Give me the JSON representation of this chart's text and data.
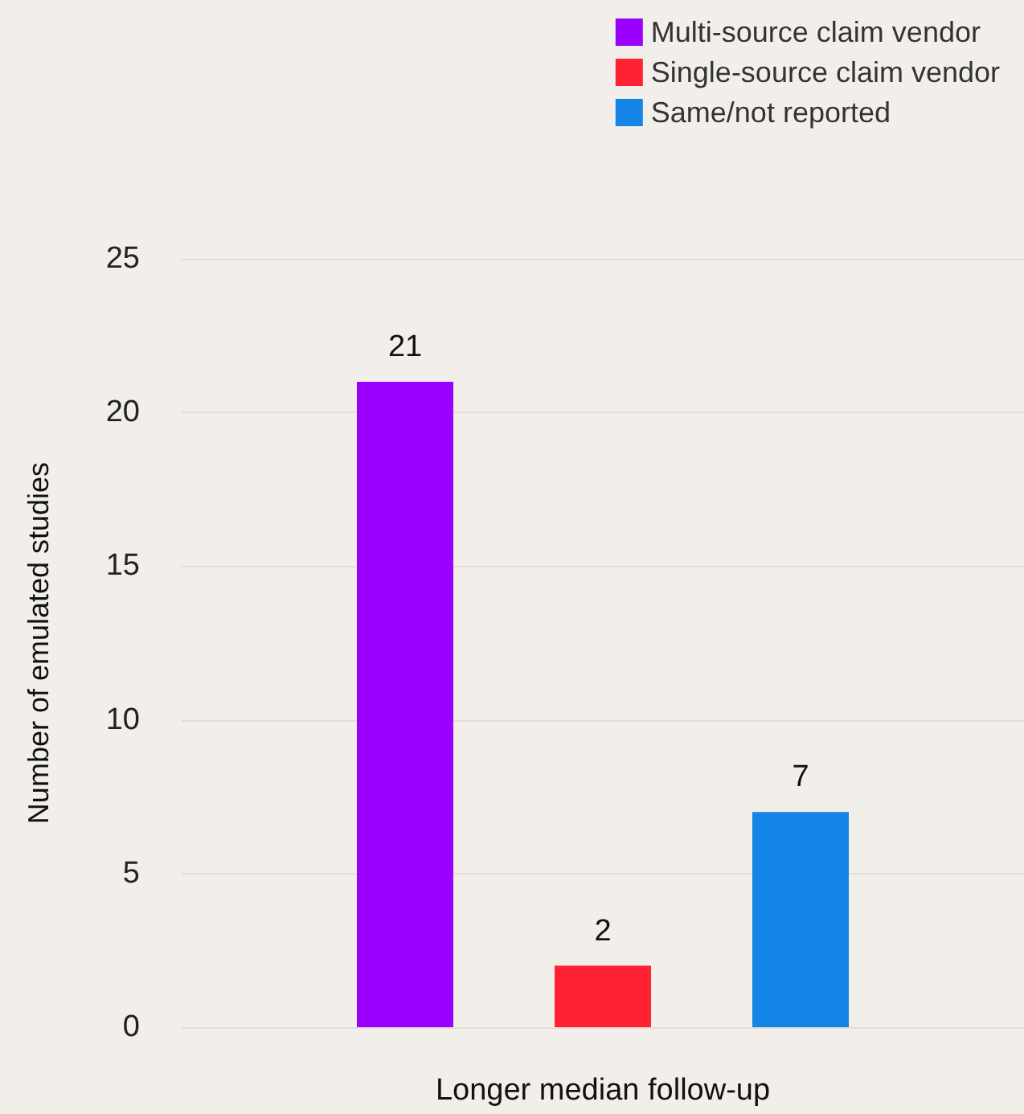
{
  "chart_data": {
    "type": "bar",
    "categories": [
      "Longer median follow-up"
    ],
    "series": [
      {
        "name": "Multi-source claim vendor",
        "color": "#9b00ff",
        "values": [
          21
        ]
      },
      {
        "name": "Single-source claim vendor",
        "color": "#ff2233",
        "values": [
          2
        ]
      },
      {
        "name": "Same/not reported",
        "color": "#1485e6",
        "values": [
          7
        ]
      }
    ],
    "ylabel": "Number of emulated studies",
    "ylim": [
      0,
      25
    ],
    "yticks": [
      0,
      5,
      10,
      15,
      20,
      25
    ],
    "grid": "y",
    "legend": "top right",
    "data_labels": true
  }
}
